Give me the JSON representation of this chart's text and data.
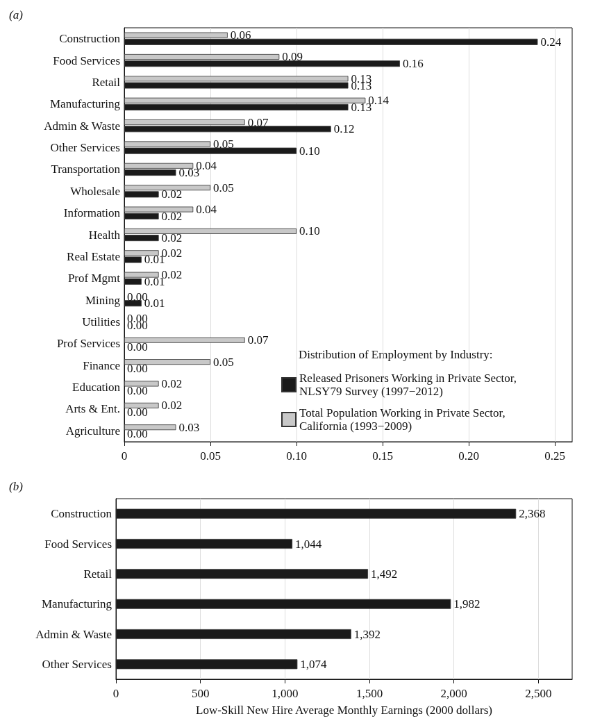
{
  "chart_data": [
    {
      "type": "bar",
      "title": "(a)",
      "orientation": "horizontal",
      "legend_title": "Distribution of Employment by Industry:",
      "legend": "bottom right",
      "grid": "x",
      "categories": [
        "Construction",
        "Food Services",
        "Retail",
        "Manufacturing",
        "Admin & Waste",
        "Other Services",
        "Transportation",
        "Wholesale",
        "Information",
        "Health",
        "Real Estate",
        "Prof Mgmt",
        "Mining",
        "Utilities",
        "Prof Services",
        "Finance",
        "Education",
        "Arts & Ent.",
        "Agriculture"
      ],
      "xlim": [
        0,
        0.26
      ],
      "xticks": [
        0,
        0.05,
        {
          "value": 0.1,
          "label": "0.10"
        },
        0.15,
        {
          "value": 0.2,
          "label": "0.20"
        },
        0.25
      ],
      "series": [
        {
          "name": "Total Population Working in Private Sector, California (1993−2009)",
          "color": "#c8c8c8",
          "values": [
            0.06,
            0.09,
            0.13,
            0.14,
            0.07,
            0.05,
            0.04,
            0.05,
            0.04,
            0.1,
            0.02,
            0.02,
            0.0,
            0.0,
            0.07,
            0.05,
            0.02,
            0.02,
            0.03
          ],
          "value_labels": [
            "0.06",
            "0.09",
            "0.13",
            "0.14",
            "0.07",
            "0.05",
            "0.04",
            "0.05",
            "0.04",
            "0.10",
            "0.02",
            "0.02",
            "0.00",
            "0.00",
            "0.07",
            "0.05",
            "0.02",
            "0.02",
            "0.03"
          ]
        },
        {
          "name": "Released Prisoners Working in Private Sector, NLSY79 Survey (1997−2012)",
          "color": "#1a1a1a",
          "values": [
            0.24,
            0.16,
            0.13,
            0.13,
            0.12,
            0.1,
            0.03,
            0.02,
            0.02,
            0.02,
            0.01,
            0.01,
            0.01,
            0.0,
            0.0,
            0.0,
            0.0,
            0.0,
            0.0
          ],
          "value_labels": [
            "0.24",
            "0.16",
            "0.13",
            "0.13",
            "0.12",
            "0.10",
            "0.03",
            "0.02",
            "0.02",
            "0.02",
            "0.01",
            "0.01",
            "0.01",
            "0.00",
            "0.00",
            "0.00",
            "0.00",
            "0.00",
            "0.00"
          ]
        }
      ]
    },
    {
      "type": "bar",
      "title": "(b)",
      "orientation": "horizontal",
      "xlabel": "Low-Skill New Hire Average Monthly Earnings (2000 dollars)",
      "grid": "x",
      "categories": [
        "Construction",
        "Food Services",
        "Retail",
        "Manufacturing",
        "Admin & Waste",
        "Other Services"
      ],
      "xlim": [
        0,
        2700
      ],
      "xticks": [
        0,
        500,
        {
          "value": 1000,
          "label": "1,000"
        },
        {
          "value": 1500,
          "label": "1,500"
        },
        {
          "value": 2000,
          "label": "2,000"
        },
        {
          "value": 2500,
          "label": "2,500"
        }
      ],
      "series": [
        {
          "color": "#1a1a1a",
          "values": [
            2368,
            1044,
            1492,
            1982,
            1392,
            1074
          ],
          "value_labels": [
            "2,368",
            "1,044",
            "1,492",
            "1,982",
            "1,392",
            "1,074"
          ]
        }
      ]
    }
  ]
}
